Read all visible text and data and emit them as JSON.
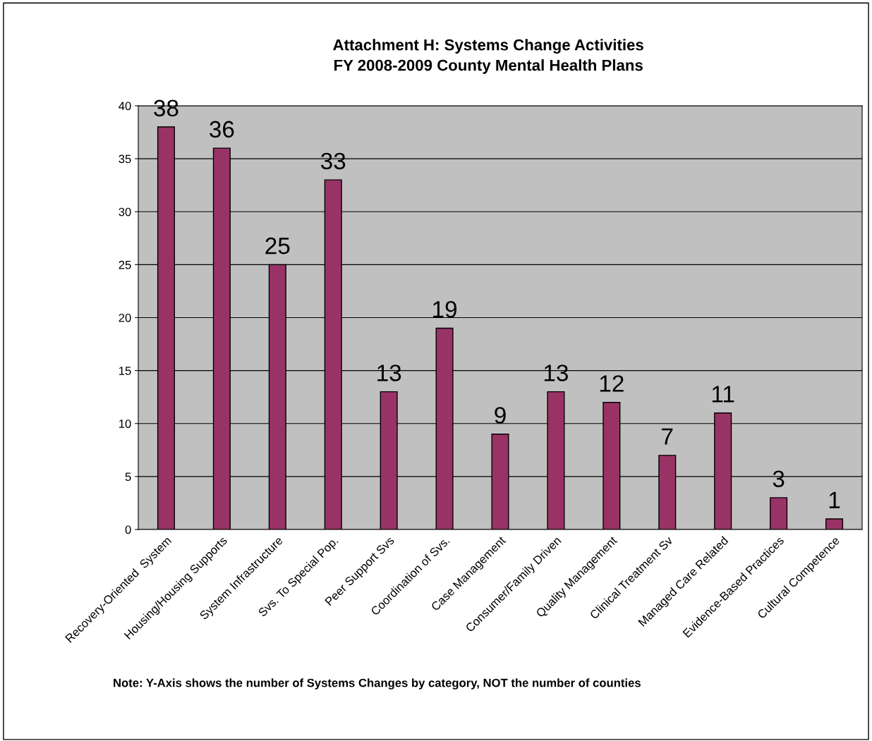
{
  "chart_data": {
    "type": "bar",
    "title": "Attachment H: Systems Change Activities\nFY 2008-2009 County Mental Health Plans",
    "categories": [
      "Recovery-Oriented  System",
      "Housing/Housing Supports",
      "System Infrastructure",
      "Svs. To Special Pop.",
      "Peer Support Svs",
      "Coordination of Svs.",
      "Case Management",
      "Consumer/Family Driven",
      "Quality Management",
      "Clinical Treatment Sv",
      "Managed Care Related",
      "Evidence-Based Practices",
      "Cultural Competence"
    ],
    "values": [
      38,
      36,
      25,
      33,
      13,
      19,
      9,
      13,
      12,
      7,
      11,
      3,
      1
    ],
    "color": "#993366",
    "ylim": [
      0,
      40
    ],
    "yticks": [
      0,
      5,
      10,
      15,
      20,
      25,
      30,
      35,
      40
    ],
    "grid": "y",
    "data_labels": true,
    "legend": false,
    "annotations": [
      "Note: Y-Axis shows the number of Systems Changes by category, NOT the number of counties"
    ]
  }
}
